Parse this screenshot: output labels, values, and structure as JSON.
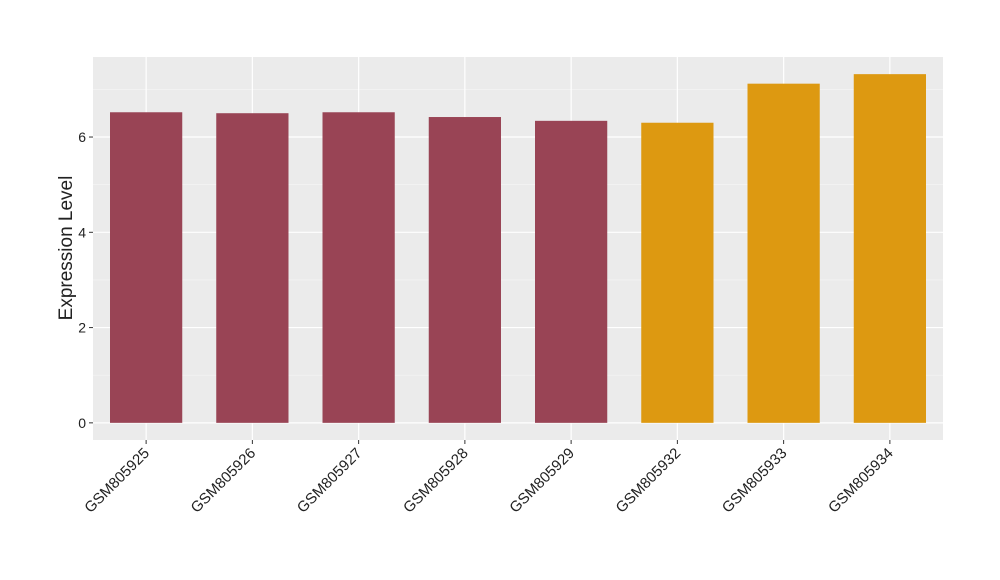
{
  "chart_data": {
    "type": "bar",
    "y_label": "Expression Level",
    "categories": [
      "GSM805925",
      "GSM805926",
      "GSM805927",
      "GSM805928",
      "GSM805929",
      "GSM805932",
      "GSM805933",
      "GSM805934"
    ],
    "values": [
      6.52,
      6.5,
      6.52,
      6.42,
      6.34,
      6.3,
      7.12,
      7.32
    ],
    "colors": [
      "#994455",
      "#994455",
      "#994455",
      "#994455",
      "#994455",
      "#dd9911",
      "#dd9911",
      "#dd9911"
    ],
    "ylim": [
      -0.36,
      7.68
    ],
    "yticks": [
      0,
      2,
      4,
      6
    ],
    "y_minor_grid": [
      1,
      3,
      5,
      7
    ],
    "grid": true
  }
}
